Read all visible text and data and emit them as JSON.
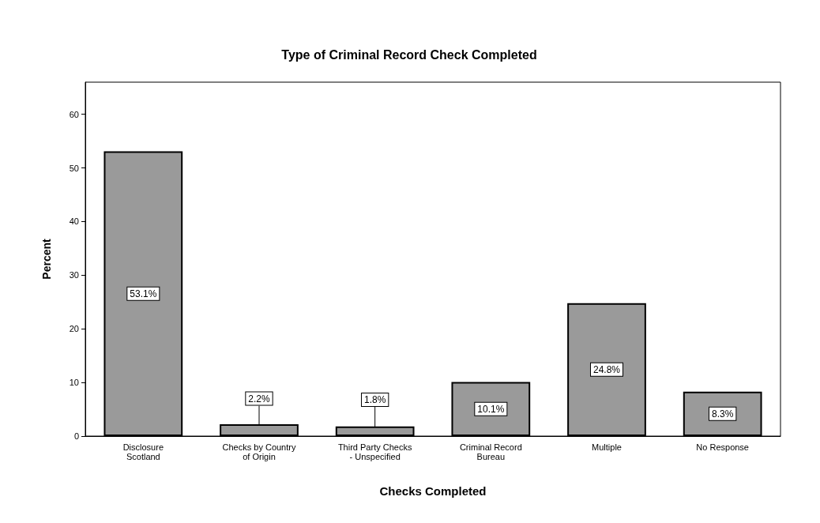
{
  "chart_data": {
    "type": "bar",
    "title": "Type of Criminal Record Check Completed",
    "xlabel": "Checks Completed",
    "ylabel": "Percent",
    "categories": [
      "Disclosure Scotland",
      "Checks by Country of Origin",
      "Third Party Checks - Unspecified",
      "Criminal Record Bureau",
      "Multiple",
      "No Response"
    ],
    "values": [
      53.1,
      2.2,
      1.8,
      10.1,
      24.8,
      8.3
    ],
    "value_labels": [
      "53.1%",
      "2.2%",
      "1.8%",
      "10.1%",
      "24.8%",
      "8.3%"
    ],
    "color": "#9a9a9a",
    "ylim": [
      0,
      66
    ],
    "yticks": [
      0,
      10,
      20,
      30,
      40,
      50,
      60
    ],
    "grid": false
  }
}
